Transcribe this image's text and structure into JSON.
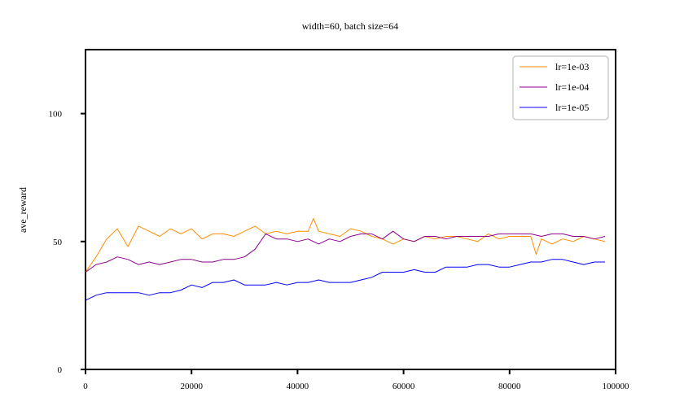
{
  "chart_data": {
    "type": "line",
    "title": "width=60, batch size=64",
    "xlabel": "",
    "ylabel": "ave_reward",
    "xlim": [
      0,
      100000
    ],
    "ylim": [
      0,
      125
    ],
    "xticks": [
      0,
      20000,
      40000,
      60000,
      80000,
      100000
    ],
    "xtick_labels": [
      "0",
      "20000",
      "40000",
      "60000",
      "80000",
      "100000"
    ],
    "yticks": [
      0,
      50,
      100
    ],
    "ytick_labels": [
      "0",
      "50",
      "100"
    ],
    "grid": false,
    "legend": "top-right",
    "series": [
      {
        "name": "lr=1e-03",
        "color": "#ff8c00",
        "x": [
          0,
          2000,
          4000,
          6000,
          8000,
          10000,
          12000,
          14000,
          16000,
          18000,
          20000,
          22000,
          24000,
          26000,
          28000,
          30000,
          32000,
          34000,
          36000,
          38000,
          40000,
          42000,
          43000,
          44000,
          46000,
          48000,
          50000,
          52000,
          54000,
          56000,
          58000,
          60000,
          62000,
          64000,
          66000,
          68000,
          70000,
          72000,
          74000,
          76000,
          78000,
          80000,
          82000,
          84000,
          85000,
          86000,
          88000,
          90000,
          92000,
          94000,
          96000,
          98000
        ],
        "y": [
          38,
          44,
          51,
          55,
          48,
          56,
          54,
          52,
          55,
          53,
          55,
          51,
          53,
          53,
          52,
          54,
          56,
          53,
          54,
          53,
          54,
          54,
          59,
          54,
          53,
          52,
          55,
          54,
          52,
          51,
          49,
          51,
          50,
          52,
          51,
          52,
          52,
          51,
          50,
          53,
          51,
          52,
          52,
          52,
          45,
          51,
          49,
          51,
          50,
          52,
          51,
          50
        ]
      },
      {
        "name": "lr=1e-04",
        "color": "#8b008b",
        "x": [
          0,
          2000,
          4000,
          6000,
          8000,
          10000,
          12000,
          14000,
          16000,
          18000,
          20000,
          22000,
          24000,
          26000,
          28000,
          30000,
          32000,
          34000,
          36000,
          38000,
          40000,
          42000,
          44000,
          46000,
          48000,
          50000,
          52000,
          54000,
          56000,
          58000,
          60000,
          62000,
          64000,
          66000,
          68000,
          70000,
          72000,
          74000,
          76000,
          78000,
          80000,
          82000,
          84000,
          86000,
          88000,
          90000,
          92000,
          94000,
          96000,
          98000
        ],
        "y": [
          38,
          41,
          42,
          44,
          43,
          41,
          42,
          41,
          42,
          43,
          43,
          42,
          42,
          43,
          43,
          44,
          47,
          53,
          51,
          51,
          50,
          51,
          49,
          51,
          50,
          52,
          53,
          53,
          51,
          54,
          51,
          50,
          52,
          52,
          51,
          52,
          52,
          52,
          52,
          53,
          53,
          53,
          53,
          52,
          53,
          53,
          52,
          52,
          51,
          52
        ]
      },
      {
        "name": "lr=1e-05",
        "color": "#0000ff",
        "x": [
          0,
          2000,
          4000,
          6000,
          8000,
          10000,
          12000,
          14000,
          16000,
          18000,
          20000,
          22000,
          24000,
          26000,
          28000,
          30000,
          32000,
          34000,
          36000,
          38000,
          40000,
          42000,
          44000,
          46000,
          48000,
          50000,
          52000,
          54000,
          56000,
          58000,
          60000,
          62000,
          64000,
          66000,
          68000,
          70000,
          72000,
          74000,
          76000,
          78000,
          80000,
          82000,
          84000,
          86000,
          88000,
          90000,
          92000,
          94000,
          96000,
          98000
        ],
        "y": [
          27,
          29,
          30,
          30,
          30,
          30,
          29,
          30,
          30,
          31,
          33,
          32,
          34,
          34,
          35,
          33,
          33,
          33,
          34,
          33,
          34,
          34,
          35,
          34,
          34,
          34,
          35,
          36,
          38,
          38,
          38,
          39,
          38,
          38,
          40,
          40,
          40,
          41,
          41,
          40,
          40,
          41,
          42,
          42,
          43,
          43,
          42,
          41,
          42,
          42
        ]
      }
    ]
  }
}
